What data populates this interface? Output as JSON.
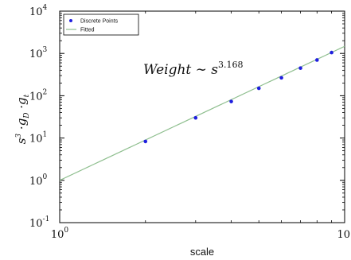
{
  "chart_data": {
    "type": "scatter",
    "xscale": "log",
    "yscale": "log",
    "xlim": [
      1,
      10
    ],
    "ylim": [
      0.1,
      10000
    ],
    "xlabel": "scale",
    "ylabel": {
      "base": "s",
      "exp": "3",
      "rest1": " ·g",
      "sub1": "D",
      "rest2": " ·g",
      "sub2": "t"
    },
    "x_ticks": [
      {
        "value": 1,
        "base": "10",
        "exp": "0"
      },
      {
        "value": 10,
        "base": "10",
        "exp": ""
      }
    ],
    "y_ticks": [
      {
        "value": 0.1,
        "base": "10",
        "exp": "-1"
      },
      {
        "value": 1,
        "base": "10",
        "exp": "0"
      },
      {
        "value": 10,
        "base": "10",
        "exp": "1"
      },
      {
        "value": 100,
        "base": "10",
        "exp": "2"
      },
      {
        "value": 1000,
        "base": "10",
        "exp": "3"
      },
      {
        "value": 10000,
        "base": "10",
        "exp": "4"
      }
    ],
    "annotation": {
      "text": "Weight ∼ s",
      "exp": "3.168"
    },
    "legend": {
      "placement": "top-left",
      "entries": [
        "Discrete Points",
        "Fitted"
      ]
    },
    "series": [
      {
        "name": "Discrete Points",
        "kind": "points",
        "color": "#1f1fdf",
        "x": [
          2,
          3,
          4,
          5,
          6,
          7,
          8,
          9
        ],
        "y": [
          8.3,
          30,
          73,
          150,
          265,
          450,
          700,
          1050
        ]
      },
      {
        "name": "Fitted",
        "kind": "line",
        "color": "#8fbf8f",
        "coefficient": 1,
        "exponent": 3.168
      }
    ]
  }
}
